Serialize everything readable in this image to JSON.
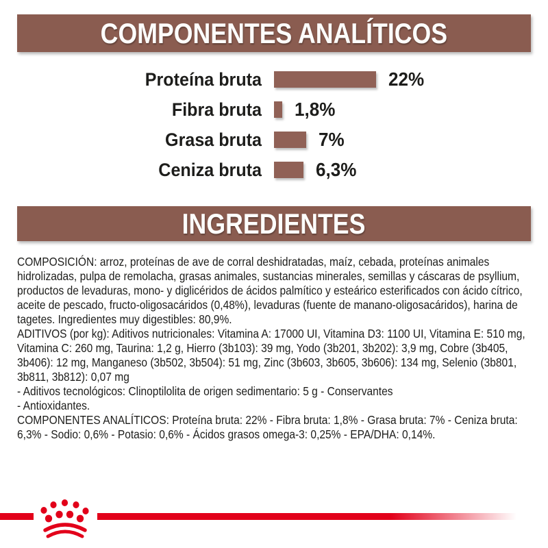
{
  "headers": {
    "analytical": {
      "title": "COMPONENTES ANALÍTICOS"
    },
    "ingredients": {
      "title": "INGREDIENTES"
    }
  },
  "chart_data": {
    "type": "bar",
    "orientation": "horizontal",
    "categories": [
      "Proteína bruta",
      "Fibra bruta",
      "Grasa bruta",
      "Ceniza bruta"
    ],
    "values": [
      22,
      1.8,
      7,
      6.3
    ],
    "value_labels": [
      "22%",
      "1,8%",
      "7%",
      "6,3%"
    ],
    "unit": "%",
    "xlim": [
      0,
      22
    ],
    "grid": false,
    "legend": false,
    "title": "COMPONENTES ANALÍTICOS",
    "xlabel": "",
    "ylabel": "",
    "bar_color": "#906156"
  },
  "text": {
    "composition": "COMPOSICIÓN: arroz, proteínas de ave de corral deshidratadas, maíz, cebada, proteínas animales hidrolizadas, pulpa de remolacha, grasas animales, sustancias minerales, semillas y cáscaras de psyllium, productos de levaduras, mono- y diglicéridos de ácidos palmítico y esteárico esterificados con ácido cítrico, aceite de pescado, fructo-oligosacáridos (0,48%), levaduras (fuente de manano-oligosacáridos), harina de tagetes. Ingredientes muy digestibles: 80,9%.",
    "additives_lines": [
      "ADITIVOS (por kg): Aditivos nutricionales: Vitamina A: 17000 UI, Vitamina D3: 1100 UI, Vitamina E: 510 mg, Vitamina C: 260 mg, Taurina: 1,2 g, Hierro (3b103): 39 mg, Yodo (3b201, 3b202): 3,9 mg, Cobre (3b405, 3b406): 12 mg, Manganeso (3b502, 3b504): 51 mg, Zinc (3b603, 3b605, 3b606): 134 mg, Selenio (3b801, 3b811, 3b812): 0,07 mg",
      "- Aditivos tecnológicos: Clinoptilolita de origen sedimentario: 5 g - Conservantes",
      "- Antioxidantes."
    ],
    "analytical": "COMPONENTES ANALÍTICOS: Proteína bruta: 22% - Fibra bruta: 1,8% - Grasa bruta: 7% - Ceniza bruta: 6,3% - Sodio: 0,6% - Potasio: 0,6% - Ácidos grasos omega-3: 0,25% - EPA/DHA: 0,14%."
  },
  "colors": {
    "band_maroon": "#8a5c50",
    "bar_maroon": "#906156",
    "brand_red": "#e2001a",
    "text": "#1d1d1b"
  },
  "logo": {
    "name": "royal-canin-crown"
  }
}
